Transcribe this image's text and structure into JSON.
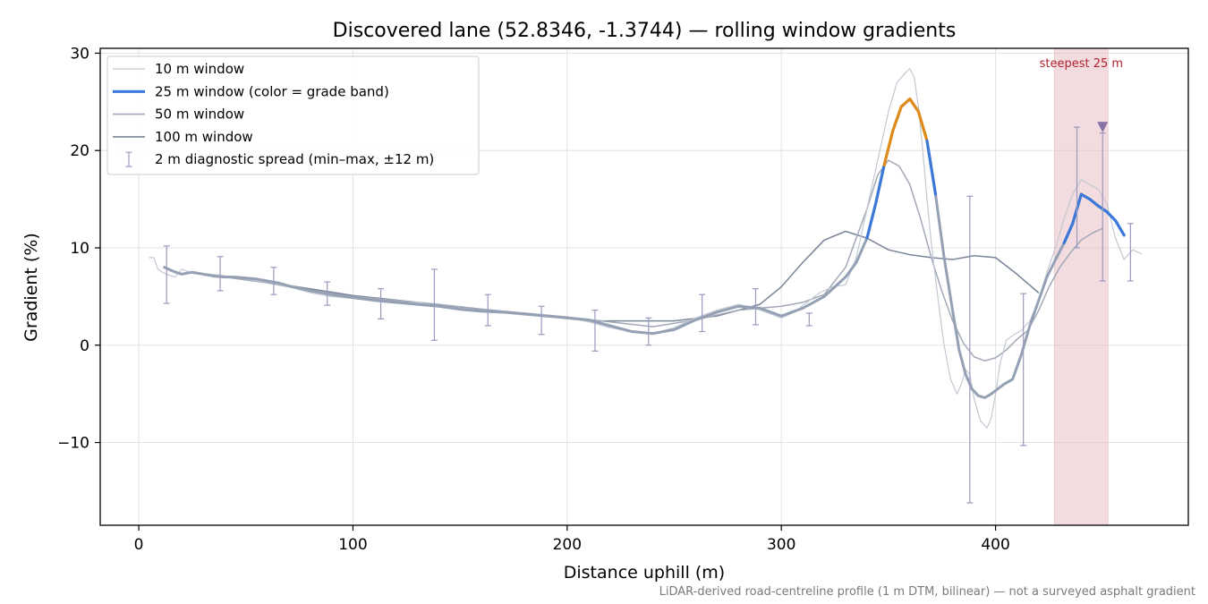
{
  "chart_data": {
    "type": "line",
    "title": "Discovered lane (52.8346, -1.3744) — rolling window gradients",
    "xlabel": "Distance uphill (m)",
    "ylabel": "Gradient (%)",
    "xlim": [
      -18,
      490
    ],
    "ylim": [
      -18.5,
      30.5
    ],
    "x_ticks": [
      0,
      100,
      200,
      300,
      400
    ],
    "y_ticks": [
      30,
      20,
      10,
      0,
      -10
    ],
    "y_tick_labels": [
      "30",
      "20",
      "10",
      "0",
      "−10"
    ],
    "grid": true,
    "legend_position": "top-left",
    "footnote": "LiDAR-derived road-centreline profile (1 m DTM, bilinear) — not a surveyed asphalt gradient",
    "highlight": {
      "label": "steepest 25 m",
      "x_start": 427.5,
      "x_end": 452.5,
      "color": "#e8c1c6"
    },
    "marker": {
      "x": 450,
      "y": 22.4,
      "color": "#8a73a8"
    },
    "grade_band_colors": {
      "low": "#3b78d8",
      "mid": "#e08a1a",
      "high": "#b0222e"
    },
    "series": [
      {
        "name": "10 m window",
        "legend": "10 m window",
        "color": "#c3c8d3",
        "width": 1.2,
        "x": [
          5,
          7,
          9,
          11,
          14,
          17,
          20,
          24,
          28,
          33,
          38,
          44,
          50,
          56,
          62,
          70,
          80,
          90,
          100,
          110,
          120,
          130,
          140,
          150,
          160,
          170,
          180,
          190,
          200,
          210,
          220,
          230,
          240,
          250,
          260,
          270,
          280,
          290,
          300,
          306,
          312,
          318,
          324,
          330,
          335,
          340,
          345,
          350,
          354,
          358,
          360,
          362,
          364,
          366,
          368,
          370,
          373,
          376,
          379,
          382,
          384,
          386,
          388,
          390,
          393,
          396,
          398,
          400,
          402,
          405,
          408,
          412,
          416,
          420,
          424,
          428,
          432,
          436,
          440,
          444,
          448,
          452,
          456,
          460,
          464,
          468
        ],
        "y": [
          9.0,
          9.0,
          7.8,
          7.5,
          7.2,
          7.0,
          7.8,
          7.5,
          7.4,
          7.3,
          7.2,
          7.0,
          6.8,
          6.6,
          6.4,
          6.0,
          5.4,
          5.0,
          4.8,
          4.6,
          4.3,
          4.4,
          4.0,
          3.6,
          3.4,
          3.3,
          3.2,
          3.0,
          2.8,
          2.4,
          1.8,
          1.4,
          1.2,
          1.8,
          2.8,
          3.6,
          4.2,
          3.6,
          2.8,
          3.4,
          4.4,
          5.4,
          6.0,
          6.2,
          9.0,
          14.0,
          19.0,
          24.0,
          27.0,
          28.0,
          28.4,
          27.5,
          24.5,
          20.0,
          15.0,
          10.5,
          5.0,
          0.0,
          -3.5,
          -5.0,
          -4.0,
          -2.5,
          -3.0,
          -5.5,
          -7.8,
          -8.5,
          -7.5,
          -5.0,
          -2.0,
          0.5,
          1.0,
          1.5,
          2.5,
          4.5,
          7.5,
          10.0,
          13.0,
          15.5,
          17.0,
          16.5,
          16.0,
          14.5,
          11.0,
          8.8,
          9.8,
          9.4
        ]
      },
      {
        "name": "25 m window (color = grade band)",
        "legend": "25 m window (color = grade band)",
        "color": "#94a0b3",
        "width": 3.0,
        "x": [
          12,
          16,
          20,
          25,
          30,
          35,
          40,
          45,
          50,
          55,
          60,
          65,
          70,
          80,
          90,
          100,
          110,
          120,
          130,
          140,
          150,
          160,
          170,
          180,
          190,
          200,
          210,
          220,
          230,
          240,
          250,
          260,
          270,
          280,
          290,
          300,
          310,
          320,
          325,
          330,
          335,
          340,
          344,
          348,
          352,
          356,
          360,
          364,
          368,
          372,
          376,
          380,
          383,
          386,
          389,
          392,
          395,
          398,
          401,
          404,
          408,
          412,
          416,
          420,
          424,
          428,
          432,
          436,
          440,
          444,
          448,
          452,
          456,
          460
        ],
        "y": [
          8.0,
          7.6,
          7.3,
          7.5,
          7.3,
          7.1,
          7.0,
          7.0,
          6.9,
          6.8,
          6.6,
          6.4,
          6.1,
          5.6,
          5.2,
          4.9,
          4.6,
          4.4,
          4.2,
          4.0,
          3.7,
          3.5,
          3.4,
          3.2,
          3.0,
          2.8,
          2.6,
          2.0,
          1.4,
          1.2,
          1.6,
          2.6,
          3.4,
          4.0,
          3.8,
          3.0,
          3.8,
          5.0,
          6.0,
          7.0,
          8.5,
          11.0,
          14.5,
          18.5,
          22.0,
          24.5,
          25.3,
          24.0,
          21.0,
          15.5,
          9.0,
          3.5,
          -0.5,
          -3.0,
          -4.5,
          -5.2,
          -5.4,
          -5.0,
          -4.5,
          -4.0,
          -3.5,
          -1.0,
          2.0,
          4.5,
          7.0,
          8.8,
          10.5,
          12.5,
          15.5,
          15.0,
          14.3,
          13.7,
          12.8,
          11.3
        ],
        "x2": [
          0,
          1
        ],
        "band_color": "grade band"
      },
      {
        "name": "50 m window",
        "legend": "50 m window",
        "color": "#a1a8b7",
        "width": 1.5,
        "x": [
          25,
          40,
          60,
          80,
          100,
          120,
          140,
          160,
          180,
          200,
          220,
          240,
          260,
          280,
          290,
          300,
          310,
          320,
          330,
          340,
          345,
          350,
          355,
          360,
          365,
          370,
          375,
          380,
          385,
          390,
          395,
          400,
          405,
          410,
          415,
          420,
          425,
          430,
          435,
          440,
          445,
          450
        ],
        "y": [
          7.4,
          7.0,
          6.4,
          5.6,
          5.0,
          4.6,
          4.2,
          3.7,
          3.3,
          2.9,
          2.4,
          1.9,
          2.6,
          3.6,
          3.8,
          4.0,
          4.4,
          5.2,
          8.0,
          14.0,
          17.5,
          19.0,
          18.4,
          16.5,
          13.0,
          9.0,
          5.5,
          2.5,
          0.2,
          -1.2,
          -1.6,
          -1.3,
          -0.5,
          0.6,
          1.5,
          3.5,
          6.0,
          8.0,
          9.5,
          10.8,
          11.5,
          12.0
        ]
      },
      {
        "name": "100 m window",
        "legend": "100 m window",
        "color": "#7a8599",
        "width": 1.5,
        "x": [
          50,
          80,
          100,
          130,
          160,
          190,
          210,
          230,
          250,
          270,
          290,
          300,
          310,
          320,
          330,
          340,
          350,
          360,
          370,
          380,
          390,
          400,
          410,
          420
        ],
        "y": [
          6.8,
          5.8,
          5.1,
          4.4,
          3.7,
          3.0,
          2.5,
          2.5,
          2.5,
          3.0,
          4.2,
          6.0,
          8.5,
          10.8,
          11.7,
          11.0,
          9.8,
          9.3,
          9.0,
          8.8,
          9.2,
          9.0,
          7.3,
          5.4
        ]
      }
    ],
    "diagnostic_spread": {
      "name": "2 m diagnostic spread (min–max, ±12 m)",
      "legend": "2 m diagnostic spread (min–max, ±12 m)",
      "color": "#9c98bf",
      "x": [
        13,
        38,
        63,
        88,
        113,
        138,
        163,
        188,
        213,
        238,
        263,
        288,
        313,
        388,
        413,
        438,
        450,
        463
      ],
      "low": [
        4.3,
        5.6,
        5.2,
        4.1,
        2.7,
        0.5,
        2.0,
        1.1,
        -0.6,
        0.0,
        1.4,
        2.1,
        2.0,
        -16.2,
        -10.3,
        10.0,
        6.6,
        6.6
      ],
      "high": [
        10.2,
        9.1,
        8.0,
        6.5,
        5.8,
        7.8,
        5.2,
        4.0,
        3.6,
        2.8,
        5.2,
        5.8,
        3.3,
        15.3,
        5.3,
        22.4,
        21.8,
        12.5
      ]
    }
  }
}
